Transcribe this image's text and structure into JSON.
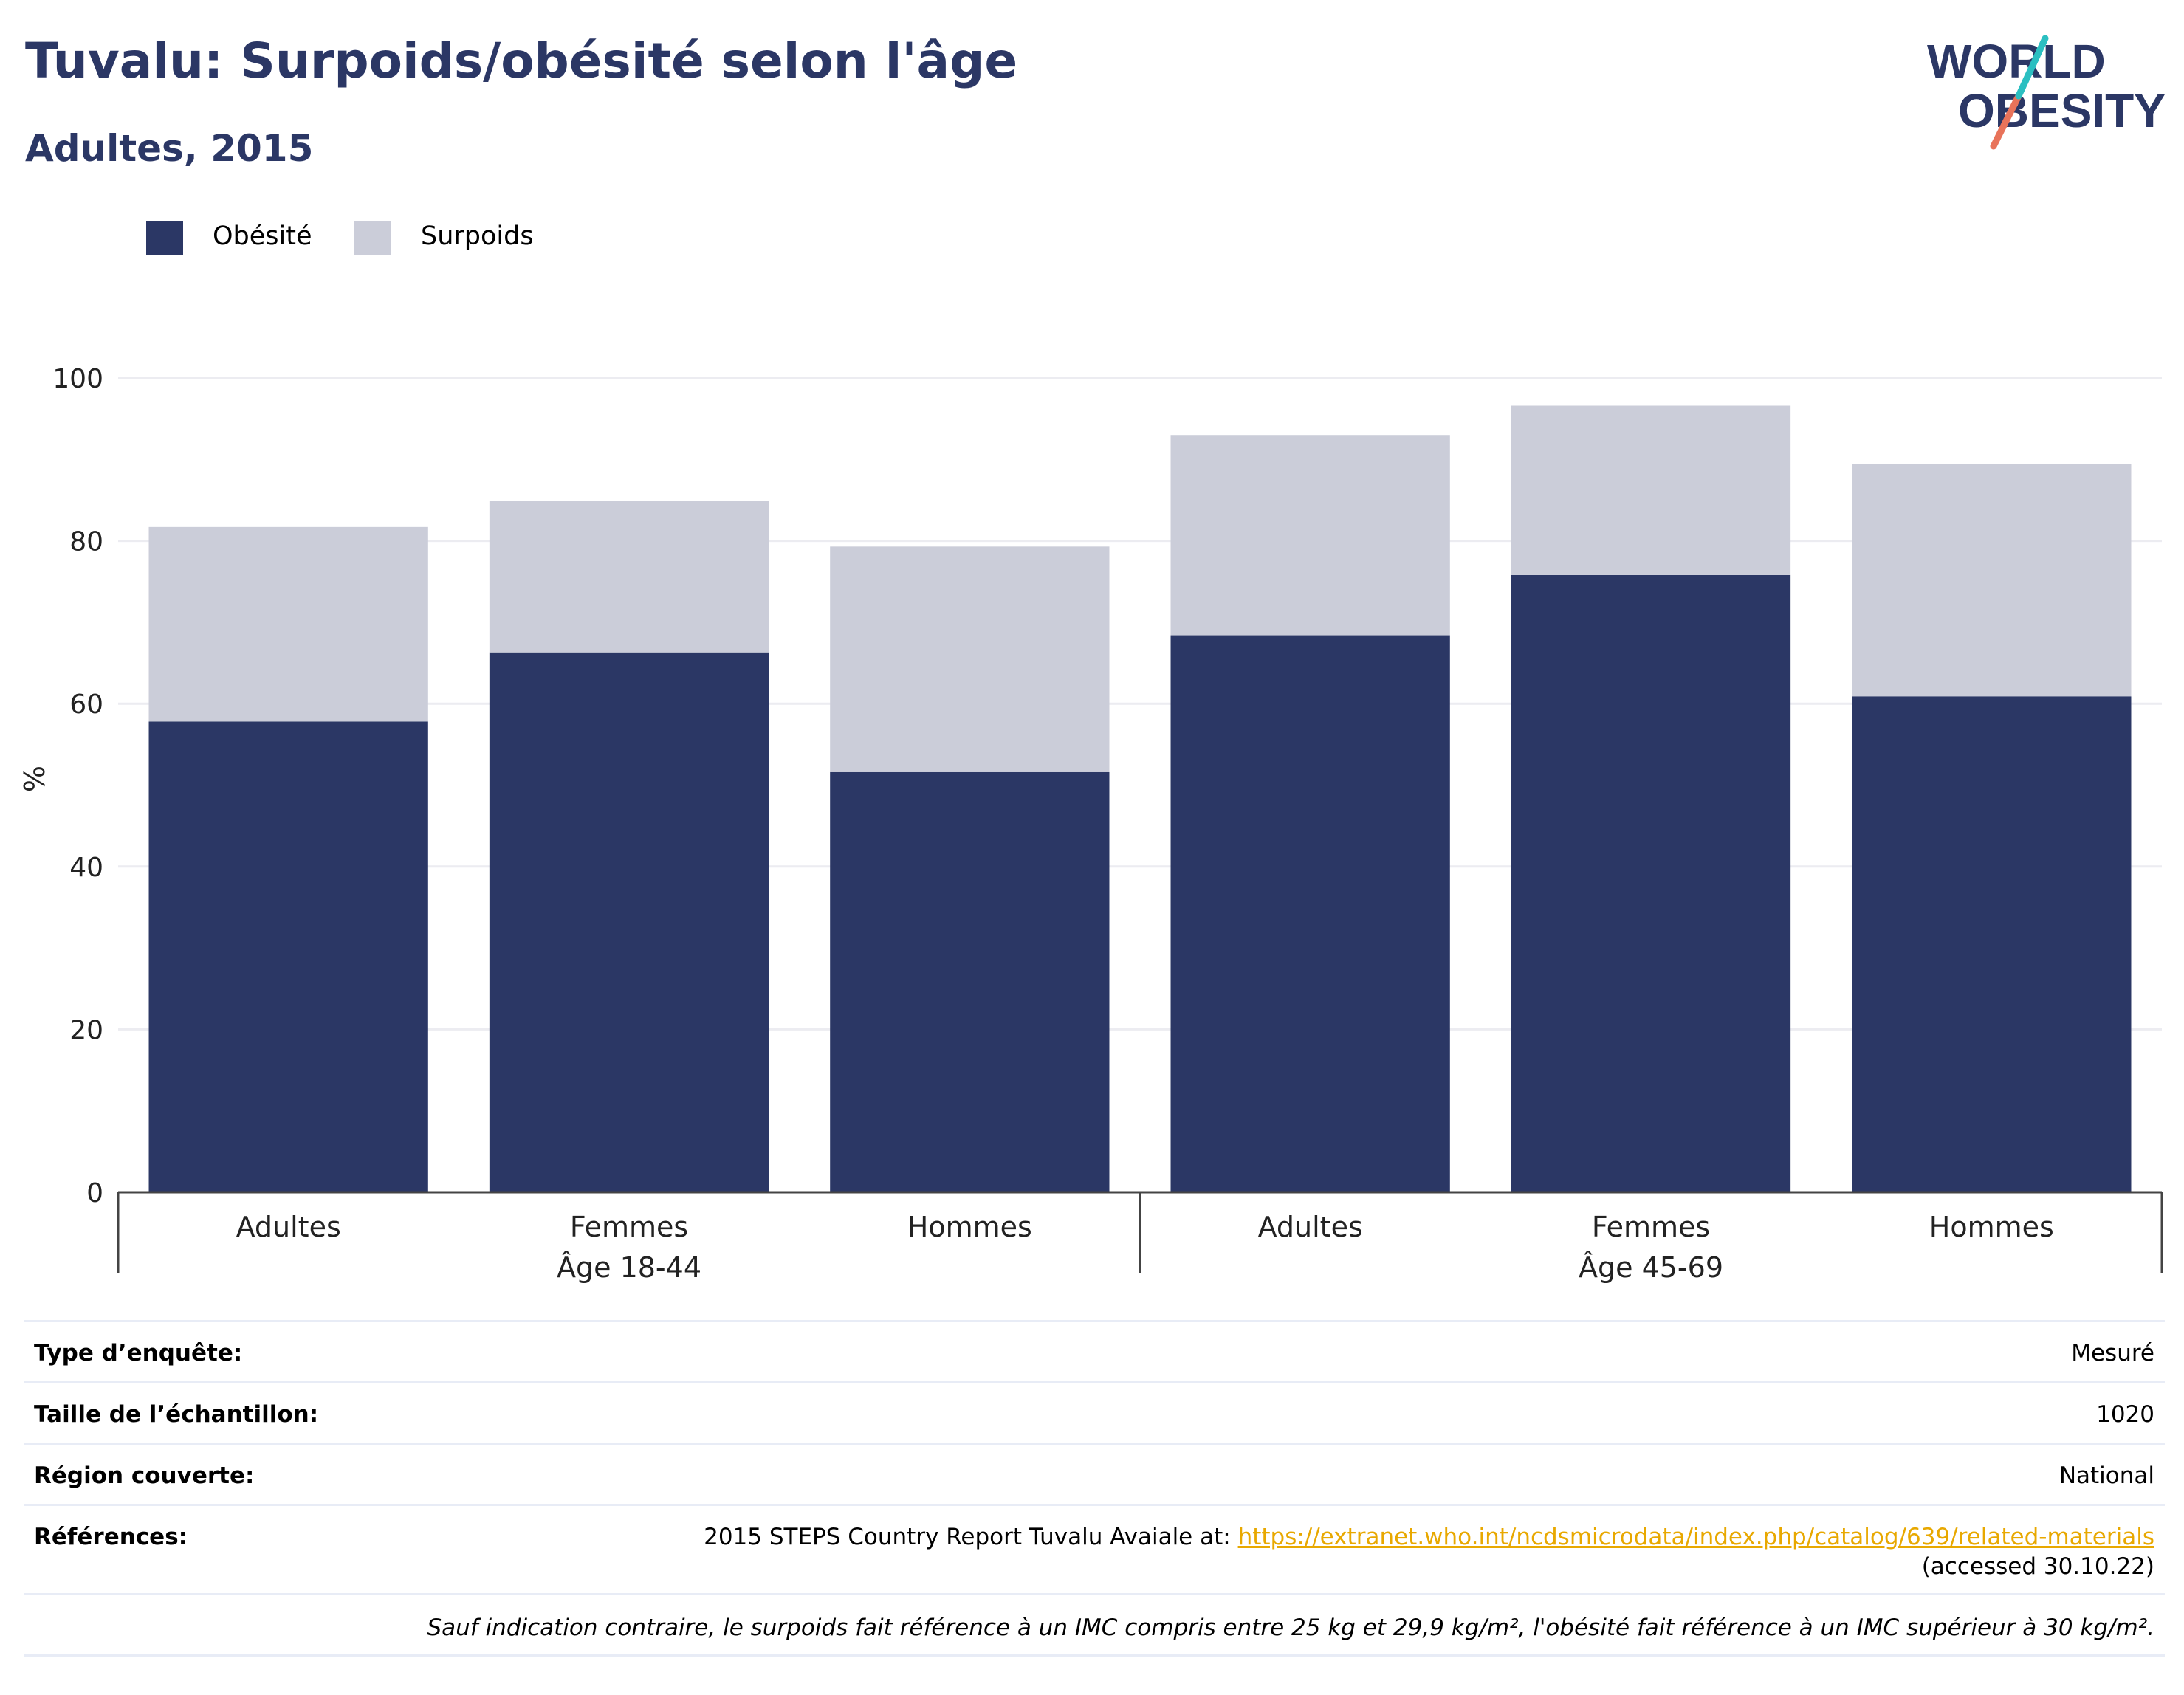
{
  "header": {
    "title": "Tuvalu: Surpoids/obésité selon l'âge",
    "subtitle": "Adultes, 2015"
  },
  "logo": {
    "line1": "WORLD",
    "line2": "OBESITY",
    "accent_colors": [
      "#2bbfc1",
      "#e8735a"
    ]
  },
  "colors": {
    "obesity": "#2b3765",
    "overweight": "#cbcdd9",
    "title": "#2b3765",
    "link": "#e8a800"
  },
  "chart_data": {
    "type": "bar",
    "stacked": true,
    "ylabel": "%",
    "ylim": [
      0,
      100
    ],
    "yticks": [
      0,
      20,
      40,
      60,
      80,
      100
    ],
    "grid": true,
    "legend_position": "top-left",
    "categories": [
      "Adultes",
      "Femmes",
      "Hommes",
      "Adultes",
      "Femmes",
      "Hommes"
    ],
    "groups": [
      {
        "label": "Âge 18-44",
        "categories": [
          "Adultes",
          "Femmes",
          "Hommes"
        ]
      },
      {
        "label": "Âge 45-69",
        "categories": [
          "Adultes",
          "Femmes",
          "Hommes"
        ]
      }
    ],
    "series": [
      {
        "name": "Obésité",
        "values": [
          57.8,
          66.3,
          51.6,
          68.4,
          75.8,
          60.9
        ]
      },
      {
        "name": "Surpoids",
        "values": [
          23.9,
          18.6,
          27.7,
          24.6,
          20.8,
          28.5
        ]
      }
    ]
  },
  "info": {
    "survey_type_label": "Type d’enquête:",
    "survey_type_value": "Mesuré",
    "sample_size_label": "Taille de l’échantillon:",
    "sample_size_value": "1020",
    "region_label": "Région couverte:",
    "region_value": "National",
    "references_label": "Références:",
    "references_text": "2015 STEPS Country Report Tuvalu Avaiale at: ",
    "references_link": "https://extranet.who.int/ncdsmicrodata/index.php/catalog/639/related-materials",
    "references_accessed": "(accessed 30.10.22)",
    "note": "Sauf indication contraire, le surpoids fait référence à un IMC compris entre 25 kg et 29,9 kg/m², l'obésité fait référence à un IMC supérieur à 30 kg/m²."
  }
}
